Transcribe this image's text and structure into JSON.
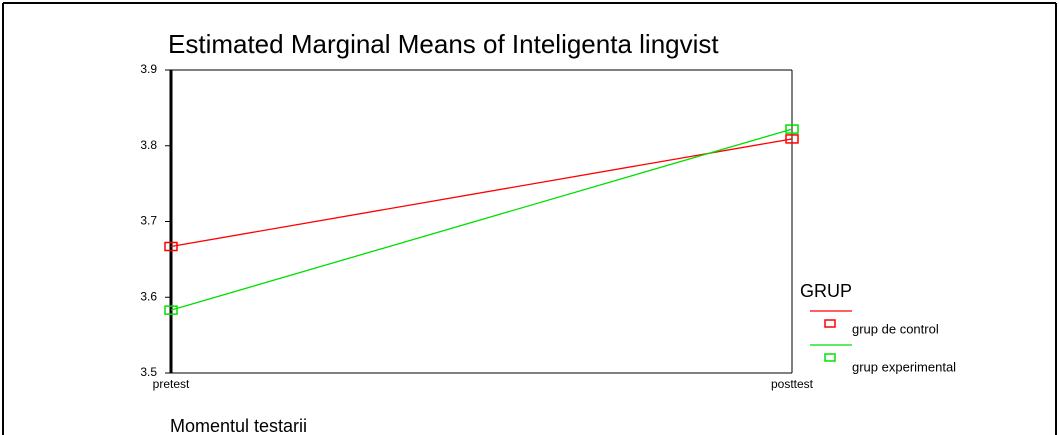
{
  "chart_data": {
    "type": "line",
    "title": "Estimated Marginal Means of Inteligenta lingvist",
    "x_label": "Momentul testarii",
    "categories": [
      "pretest",
      "posttest"
    ],
    "series": [
      {
        "name": "grup de control",
        "color": "#ff0000",
        "values": [
          3.667,
          3.809
        ]
      },
      {
        "name": "grup experimental",
        "color": "#00e000",
        "values": [
          3.583,
          3.822
        ]
      }
    ],
    "legend_title": "GRUP",
    "ylim": [
      3.5,
      3.9
    ],
    "yticks": [
      3.5,
      3.6,
      3.7,
      3.8,
      3.9
    ]
  }
}
